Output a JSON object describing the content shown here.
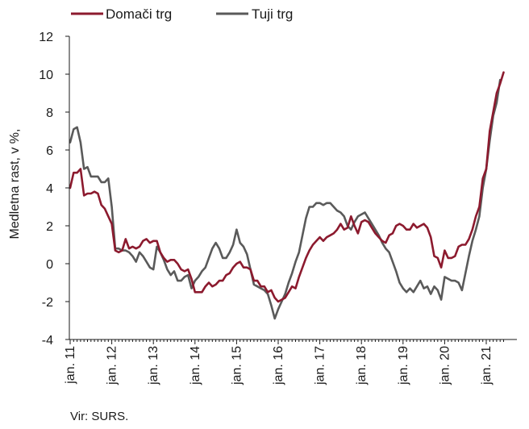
{
  "chart_data": {
    "type": "line",
    "title": "",
    "xlabel": "",
    "ylabel": "Medletna rast, v %,",
    "ylim": [
      -4,
      12
    ],
    "yticks": [
      -4,
      -2,
      0,
      2,
      4,
      6,
      8,
      10,
      12
    ],
    "grid": false,
    "legend_position": "top-left",
    "source": "Vir: SURS.",
    "x_tick_labels": [
      "jan. 11",
      "jan. 12",
      "jan. 13",
      "jan. 14",
      "jan. 15",
      "jan. 16",
      "jan. 17",
      "jan. 18",
      "jan. 19",
      "jan. 20",
      "jan. 21"
    ],
    "series": [
      {
        "name": "Domači trg",
        "color": "#8c1a2e",
        "values": [
          4.0,
          4.8,
          4.8,
          5.0,
          3.6,
          3.7,
          3.7,
          3.8,
          3.7,
          3.1,
          2.9,
          2.5,
          2.1,
          0.7,
          0.6,
          0.7,
          1.3,
          0.8,
          0.9,
          0.8,
          0.9,
          1.2,
          1.3,
          1.1,
          1.2,
          1.2,
          0.6,
          0.3,
          0.1,
          0.2,
          0.2,
          0.0,
          -0.3,
          -0.4,
          -0.3,
          -0.8,
          -1.5,
          -1.5,
          -1.5,
          -1.2,
          -1.0,
          -1.2,
          -1.1,
          -0.9,
          -0.9,
          -0.6,
          -0.5,
          -0.2,
          0.0,
          0.1,
          -0.2,
          -0.2,
          -0.3,
          -0.9,
          -0.9,
          -1.2,
          -1.2,
          -1.5,
          -1.4,
          -1.8,
          -2.0,
          -1.9,
          -1.8,
          -1.5,
          -1.2,
          -1.3,
          -0.7,
          -0.2,
          0.3,
          0.7,
          1.0,
          1.2,
          1.4,
          1.2,
          1.4,
          1.5,
          1.6,
          1.8,
          2.1,
          1.8,
          1.9,
          2.5,
          2.0,
          1.6,
          2.2,
          2.3,
          2.2,
          1.9,
          1.6,
          1.4,
          1.2,
          1.1,
          1.5,
          1.6,
          2.0,
          2.1,
          2.0,
          1.8,
          1.8,
          2.1,
          1.9,
          2.0,
          2.1,
          1.9,
          1.4,
          0.4,
          0.3,
          -0.2,
          0.7,
          0.3,
          0.3,
          0.4,
          0.9,
          1.0,
          1.0,
          1.3,
          1.8,
          2.5,
          3.0,
          4.5,
          5.0,
          7.0,
          8.0,
          9.0,
          9.5,
          10.1
        ]
      },
      {
        "name": "Tuji trg",
        "color": "#5a5a5a",
        "values": [
          6.4,
          7.1,
          7.2,
          6.4,
          5.0,
          5.1,
          4.6,
          4.6,
          4.6,
          4.3,
          4.3,
          4.5,
          3.0,
          0.8,
          0.8,
          0.7,
          0.7,
          0.6,
          0.4,
          0.1,
          0.6,
          0.4,
          0.1,
          -0.2,
          -0.3,
          0.9,
          0.6,
          0.2,
          -0.3,
          -0.6,
          -0.4,
          -0.9,
          -0.9,
          -0.7,
          -0.6,
          -1.3,
          -0.9,
          -0.7,
          -0.4,
          -0.2,
          0.3,
          0.8,
          1.1,
          0.8,
          0.3,
          0.3,
          0.6,
          1.0,
          1.8,
          1.1,
          0.9,
          0.5,
          -0.3,
          -1.1,
          -1.2,
          -1.3,
          -1.4,
          -1.6,
          -2.2,
          -2.9,
          -2.4,
          -2.0,
          -1.6,
          -1.0,
          -0.5,
          0.1,
          0.6,
          1.5,
          2.4,
          3.0,
          3.0,
          3.2,
          3.2,
          3.1,
          3.2,
          3.2,
          3.0,
          2.8,
          2.7,
          2.5,
          2.0,
          1.8,
          2.2,
          2.5,
          2.6,
          2.7,
          2.4,
          2.1,
          1.8,
          1.5,
          1.1,
          0.8,
          0.6,
          0.1,
          -0.4,
          -1.0,
          -1.3,
          -1.5,
          -1.3,
          -1.5,
          -1.2,
          -0.9,
          -1.3,
          -1.2,
          -1.6,
          -1.2,
          -1.4,
          -1.9,
          -0.7,
          -0.8,
          -0.9,
          -0.9,
          -1.0,
          -1.4,
          -0.5,
          0.4,
          1.2,
          1.8,
          2.5,
          4.0,
          5.0,
          6.5,
          7.8,
          8.5,
          9.7
        ]
      }
    ]
  }
}
